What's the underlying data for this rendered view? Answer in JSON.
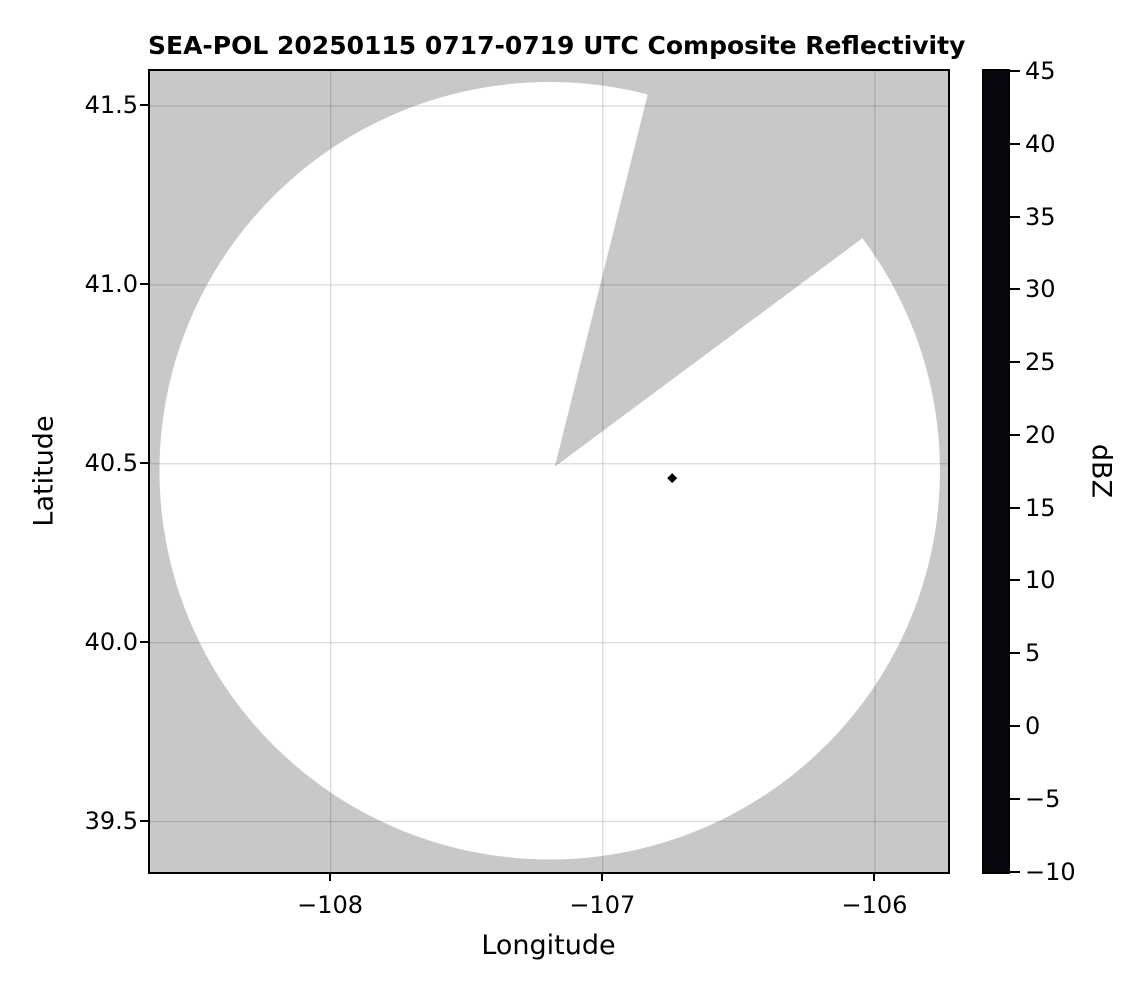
{
  "figure": {
    "background": "#ffffff"
  },
  "chart_data": {
    "type": "heatmap",
    "title": "SEA-POL 20250115 0717-0719 UTC Composite Reflectivity",
    "xlabel": "Longitude",
    "ylabel": "Latitude",
    "xlim": [
      -108.6636,
      -105.7298
    ],
    "ylim": [
      39.3575,
      41.5978
    ],
    "x_ticks": [
      {
        "value": -108,
        "label": "−108"
      },
      {
        "value": -107,
        "label": "−107"
      },
      {
        "value": -106,
        "label": "−106"
      }
    ],
    "y_ticks": [
      {
        "value": 41.5,
        "label": "41.5"
      },
      {
        "value": 41.0,
        "label": "41.0"
      },
      {
        "value": 40.5,
        "label": "40.5"
      },
      {
        "value": 40.0,
        "label": "40.0"
      },
      {
        "value": 39.5,
        "label": "39.5"
      }
    ],
    "grid": true,
    "grid_color": "rgba(0,0,0,0.14)",
    "no_data_color": "#c8c8c8",
    "coverage_color": "#ffffff",
    "spine_color": "#000000",
    "radar_coverage": {
      "center_lon": -107.195,
      "center_lat": 40.4805,
      "radius_deg_lon": 1.4338,
      "radius_deg_lat": 1.0866,
      "radius_km_approx": 121,
      "radar_site_lon": -107.176,
      "radar_site_lat": 40.492,
      "blocked_sector_azimuth_deg": [
        14.0,
        53.4
      ],
      "note": "white disc = radar scan coverage (no echo); gray = no data / blocked sector"
    },
    "echoes": [
      {
        "lon": -106.745,
        "lat": 40.46,
        "dbz_approx": -9,
        "color": "#000000",
        "marker": "diamond"
      }
    ],
    "colorbar": {
      "label": "dBZ",
      "min": -10,
      "max": 45,
      "tick_step": 5,
      "band_width_dbz": 1,
      "ticks": [
        {
          "value": 45,
          "label": "45"
        },
        {
          "value": 40,
          "label": "40"
        },
        {
          "value": 35,
          "label": "35"
        },
        {
          "value": 30,
          "label": "30"
        },
        {
          "value": 25,
          "label": "25"
        },
        {
          "value": 20,
          "label": "20"
        },
        {
          "value": 15,
          "label": "15"
        },
        {
          "value": 10,
          "label": "10"
        },
        {
          "value": 5,
          "label": "5"
        },
        {
          "value": 0,
          "label": "0"
        },
        {
          "value": -5,
          "label": "−5"
        },
        {
          "value": -10,
          "label": "−10"
        }
      ],
      "stops": [
        {
          "v": -10,
          "c": "#000000"
        },
        {
          "v": -9,
          "c": "#14101c"
        },
        {
          "v": -8,
          "c": "#1d1830"
        },
        {
          "v": -7,
          "c": "#262040"
        },
        {
          "v": -6,
          "c": "#2e2850"
        },
        {
          "v": -5,
          "c": "#363160"
        },
        {
          "v": -4,
          "c": "#3e3970"
        },
        {
          "v": -3,
          "c": "#46417e"
        },
        {
          "v": -2,
          "c": "#4e498c"
        },
        {
          "v": -1,
          "c": "#565199"
        },
        {
          "v": 0,
          "c": "#5d58a5"
        },
        {
          "v": 1,
          "c": "#6460b0"
        },
        {
          "v": 2,
          "c": "#6a68ba"
        },
        {
          "v": 3,
          "c": "#6675c4"
        },
        {
          "v": 4,
          "c": "#5a85c8"
        },
        {
          "v": 5,
          "c": "#4d91bd"
        },
        {
          "v": 6,
          "c": "#479ca6"
        },
        {
          "v": 7,
          "c": "#48a495"
        },
        {
          "v": 8,
          "c": "#50ab8e"
        },
        {
          "v": 9,
          "c": "#5cb28a"
        },
        {
          "v": 10,
          "c": "#6ab887"
        },
        {
          "v": 11,
          "c": "#7dc088"
        },
        {
          "v": 12,
          "c": "#92c88c"
        },
        {
          "v": 13,
          "c": "#a7cf8f"
        },
        {
          "v": 14,
          "c": "#bcd793"
        },
        {
          "v": 15,
          "c": "#cfdf98"
        },
        {
          "v": 16,
          "c": "#e0e69e"
        },
        {
          "v": 17,
          "c": "#eeeca7"
        },
        {
          "v": 18,
          "c": "#f5efae"
        },
        {
          "v": 19,
          "c": "#f5e7a3"
        },
        {
          "v": 20,
          "c": "#f3db95"
        },
        {
          "v": 21,
          "c": "#f0d08d"
        },
        {
          "v": 22,
          "c": "#edc17d"
        },
        {
          "v": 23,
          "c": "#e9a96b"
        },
        {
          "v": 24,
          "c": "#e39961"
        },
        {
          "v": 25,
          "c": "#df8052"
        },
        {
          "v": 26,
          "c": "#da704f"
        },
        {
          "v": 27,
          "c": "#cf5b48"
        },
        {
          "v": 28,
          "c": "#c54a47"
        },
        {
          "v": 29,
          "c": "#bb3447"
        },
        {
          "v": 30,
          "c": "#af2447"
        },
        {
          "v": 31,
          "c": "#a21a46"
        },
        {
          "v": 32,
          "c": "#90104f"
        },
        {
          "v": 33,
          "c": "#a8156a"
        },
        {
          "v": 34,
          "c": "#c32e84"
        },
        {
          "v": 35,
          "c": "#d3539b"
        },
        {
          "v": 36,
          "c": "#d778b7"
        },
        {
          "v": 37,
          "c": "#d797cb"
        },
        {
          "v": 38,
          "c": "#d7aed7"
        },
        {
          "v": 39,
          "c": "#b78dc5"
        },
        {
          "v": 40,
          "c": "#9c6cae"
        },
        {
          "v": 41,
          "c": "#8a5199"
        },
        {
          "v": 42,
          "c": "#7c3f8e"
        },
        {
          "v": 43,
          "c": "#61256f"
        },
        {
          "v": 44,
          "c": "#4a125a"
        },
        {
          "v": 45,
          "c": "#3c0d47"
        }
      ]
    }
  }
}
